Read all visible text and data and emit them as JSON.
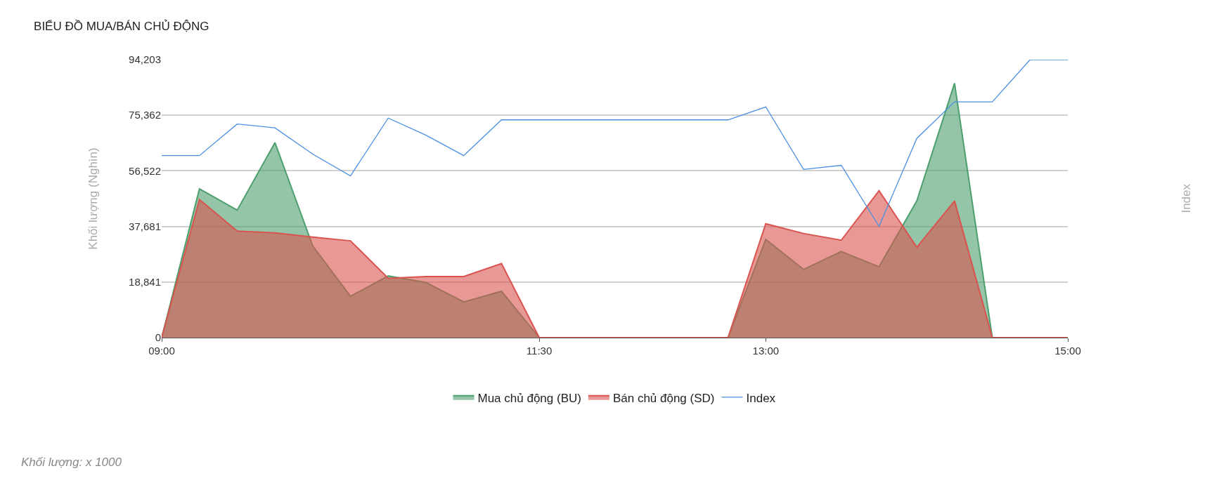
{
  "chart_data": {
    "type": "area",
    "title": "BIỂU ĐỒ MUA/BÁN CHỦ ĐỘNG",
    "ylabel": "Khối lượng (Nghìn)",
    "x": [
      9,
      9.25,
      9.5,
      9.75,
      10,
      10.25,
      10.5,
      10.75,
      11,
      11.25,
      11.5,
      11.75,
      12,
      12.25,
      12.5,
      12.75,
      13,
      13.25,
      13.5,
      13.75,
      14,
      14.25,
      14.5,
      14.75,
      15
    ],
    "series": [
      {
        "name": "Mua chủ động (BU)",
        "color": "#4e9f6e",
        "values": [
          0,
          50400,
          43200,
          66100,
          31100,
          14000,
          20900,
          18700,
          12100,
          15700,
          0,
          0,
          0,
          0,
          0,
          0,
          33300,
          23100,
          29200,
          24000,
          46300,
          86200,
          0,
          0,
          0
        ]
      },
      {
        "name": "Bán chủ động (SD)",
        "color": "#d9534f",
        "values": [
          0,
          46800,
          36100,
          35500,
          34100,
          32800,
          20100,
          20700,
          20700,
          25100,
          0,
          0,
          0,
          0,
          0,
          0,
          38600,
          35300,
          33000,
          49800,
          30600,
          46300,
          0,
          0,
          0
        ]
      },
      {
        "name": "Index",
        "color": "#4a90e2",
        "type": "line",
        "values": [
          61700,
          61700,
          72400,
          71100,
          62200,
          54800,
          74400,
          68600,
          61700,
          73800,
          73800,
          73800,
          73800,
          73800,
          73800,
          73800,
          78200,
          57000,
          58400,
          37700,
          67500,
          79900,
          79900,
          94203,
          94203
        ]
      }
    ],
    "xlim": [
      9,
      15
    ],
    "xticks": [
      {
        "value": 9,
        "label": "09:00"
      },
      {
        "value": 11.5,
        "label": "11:30"
      },
      {
        "value": 13,
        "label": "13:00"
      },
      {
        "value": 15,
        "label": "15:00"
      }
    ],
    "ylim": [
      0,
      94203
    ],
    "yticks": [
      {
        "value": 0,
        "label": "0"
      },
      {
        "value": 18841,
        "label": "18,841"
      },
      {
        "value": 37681,
        "label": "37,681"
      },
      {
        "value": 56522,
        "label": "56,522"
      },
      {
        "value": 75362,
        "label": "75,362"
      },
      {
        "value": 94203,
        "label": "94,203"
      }
    ],
    "grid": "y",
    "legend": "bottom",
    "marker": "none",
    "annotations": [
      "Khối lượng: x 1000",
      "Index"
    ]
  }
}
